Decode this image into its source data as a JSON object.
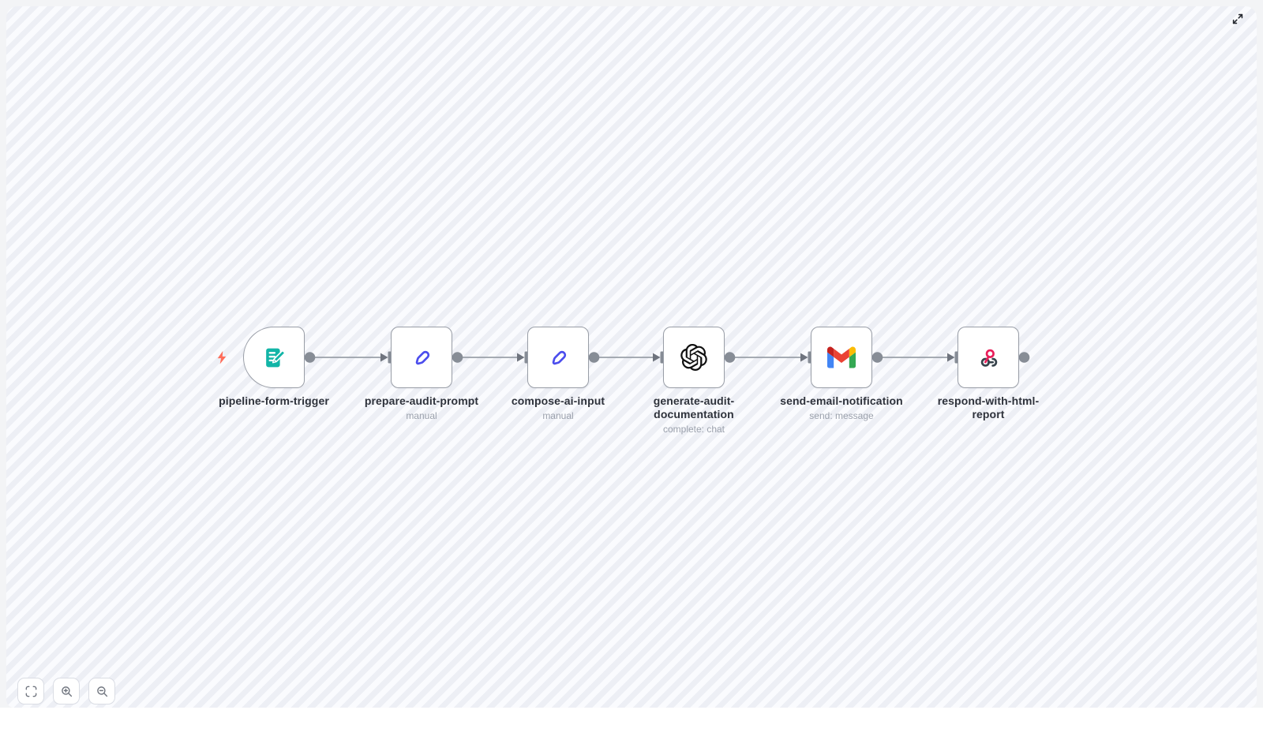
{
  "workflow": {
    "nodes": [
      {
        "name": "pipeline-form-trigger",
        "subtitle": "",
        "icon": "form-trigger-icon",
        "trigger": true
      },
      {
        "name": "prepare-audit-prompt",
        "subtitle": "manual",
        "icon": "edit-pen-icon",
        "trigger": false
      },
      {
        "name": "compose-ai-input",
        "subtitle": "manual",
        "icon": "edit-pen-icon",
        "trigger": false
      },
      {
        "name": "generate-audit-documentation",
        "subtitle": "complete: chat",
        "icon": "openai-icon",
        "trigger": false
      },
      {
        "name": "send-email-notification",
        "subtitle": "send: message",
        "icon": "gmail-icon",
        "trigger": false
      },
      {
        "name": "respond-with-html-report",
        "subtitle": "",
        "icon": "webhook-icon",
        "trigger": false
      }
    ],
    "connections": [
      [
        0,
        1
      ],
      [
        1,
        2
      ],
      [
        2,
        3
      ],
      [
        3,
        4
      ],
      [
        4,
        5
      ]
    ]
  },
  "controls": {
    "expand": "Expand",
    "fit_view": "Zoom to fit",
    "zoom_in": "Zoom in",
    "zoom_out": "Zoom out"
  },
  "colors": {
    "canvas_stripe_light": "#fafbfe",
    "canvas_stripe_dark": "#edeff5",
    "canvas_margin": "#f3f4f6",
    "node_border": "#999ea7",
    "edge_line": "#9aa0a8",
    "port_gray": "#878d96",
    "label_text": "#2e323b",
    "subtitle_text": "#9ba1ac",
    "trigger_bolt": "#ff6d5a",
    "form_icon_teal": "#12b5a7",
    "pen_icon_indigo": "#4b4ded",
    "openai_black": "#101010",
    "webhook_pink": "#e91e5a",
    "webhook_dark": "#37434c",
    "gmail_red": "#ea4335",
    "gmail_dark_red": "#c5221f",
    "gmail_blue": "#4285f4",
    "gmail_green": "#34a853",
    "gmail_yellow": "#fbbc04"
  }
}
